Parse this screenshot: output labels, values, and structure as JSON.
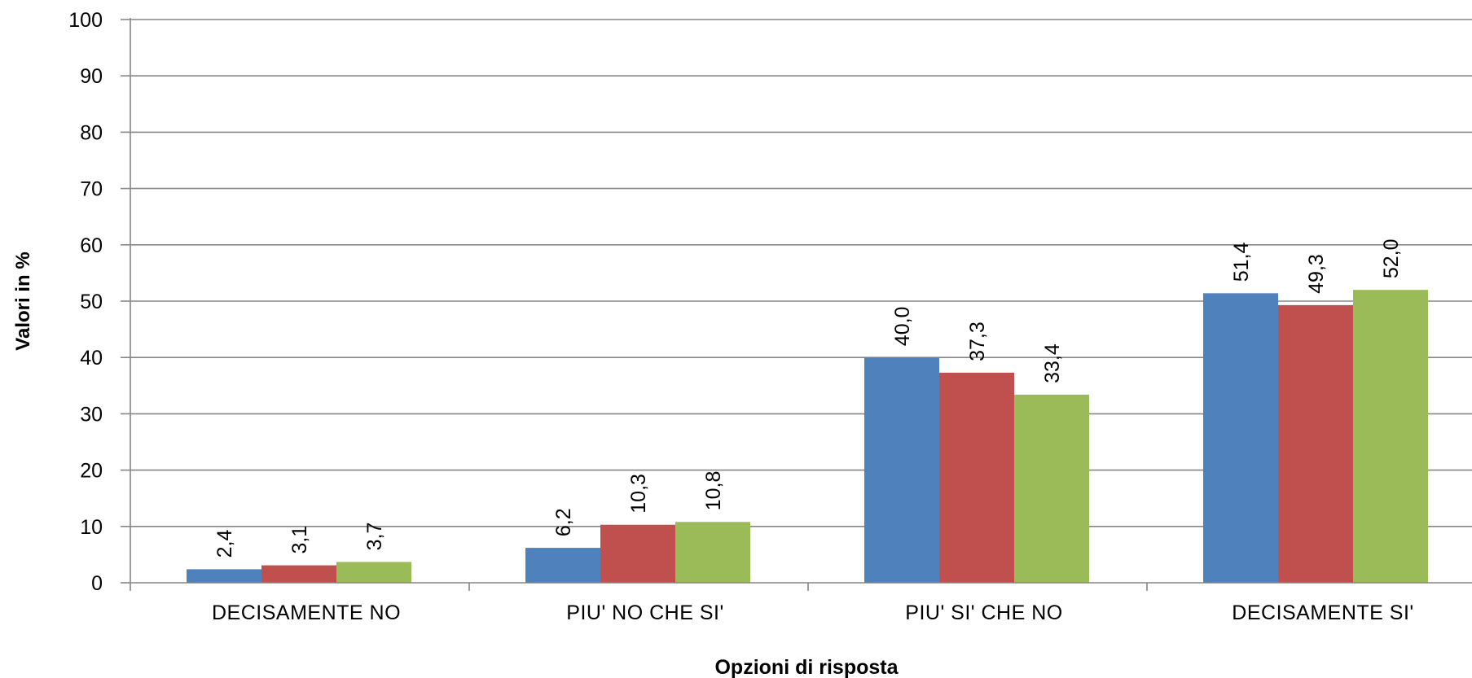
{
  "chart_data": {
    "type": "bar",
    "title": "",
    "xlabel": "Opzioni di risposta",
    "ylabel": "Valori in %",
    "ylim": [
      0,
      100
    ],
    "yticks": [
      "0",
      "10",
      "20",
      "30",
      "40",
      "50",
      "60",
      "70",
      "80",
      "90",
      "100"
    ],
    "grid": true,
    "legend": "none",
    "categories": [
      "DECISAMENTE NO",
      "PIU' NO CHE SI'",
      "PIU' SI' CHE NO",
      "DECISAMENTE SI'"
    ],
    "series": [
      {
        "color": "#4F81BD",
        "values": [
          2.4,
          6.2,
          40.0,
          51.4
        ],
        "labels": [
          "2,4",
          "6,2",
          "40,0",
          "51,4"
        ]
      },
      {
        "color": "#C0504D",
        "values": [
          3.1,
          10.3,
          37.3,
          49.3
        ],
        "labels": [
          "3,1",
          "10,3",
          "37,3",
          "49,3"
        ]
      },
      {
        "color": "#9BBB59",
        "values": [
          3.7,
          10.8,
          33.4,
          52.0
        ],
        "labels": [
          "3,7",
          "10,8",
          "33,4",
          "52,0"
        ]
      }
    ]
  }
}
